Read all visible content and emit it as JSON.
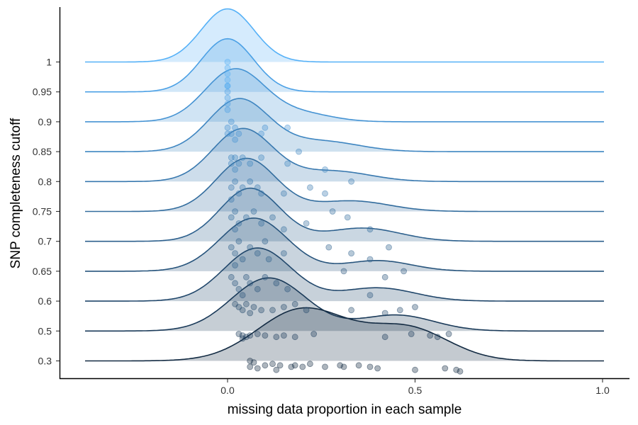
{
  "chart_data": {
    "type": "ridgeline",
    "xlabel": "missing data proportion in each sample",
    "ylabel": "SNP completeness cutoff",
    "xlim": [
      -0.38,
      1.08
    ],
    "x_ticks": [
      0.0,
      0.5,
      1.0
    ],
    "x_tick_labels": [
      "0.0",
      "0.5",
      "1.0"
    ],
    "categories": [
      "0.3",
      "0.5",
      "0.6",
      "0.65",
      "0.7",
      "0.75",
      "0.8",
      "0.85",
      "0.9",
      "0.95",
      "1"
    ],
    "grid": false,
    "legend": "none",
    "series": [
      {
        "cutoff": "0.3",
        "color": "#132B43",
        "density": {
          "modes": [
            {
              "mean": 0.2,
              "sd": 0.12,
              "w": 0.8
            },
            {
              "mean": 0.48,
              "sd": 0.11,
              "w": 0.5
            }
          ]
        },
        "points": [
          [
            0.07,
            0.29
          ],
          [
            0.06,
            0.26
          ],
          [
            0.08,
            0.25
          ],
          [
            0.1,
            0.27
          ],
          [
            0.12,
            0.28
          ],
          [
            0.13,
            0.24
          ],
          [
            0.14,
            0.27
          ],
          [
            0.17,
            0.26
          ],
          [
            0.18,
            0.27
          ],
          [
            0.2,
            0.26
          ],
          [
            0.22,
            0.28
          ],
          [
            0.26,
            0.26
          ],
          [
            0.3,
            0.27
          ],
          [
            0.31,
            0.26
          ],
          [
            0.35,
            0.27
          ],
          [
            0.38,
            0.26
          ],
          [
            0.4,
            0.25
          ],
          [
            0.5,
            0.24
          ],
          [
            0.58,
            0.25
          ],
          [
            0.61,
            0.24
          ],
          [
            0.62,
            0.23
          ],
          [
            0.06,
            0.3
          ]
        ]
      },
      {
        "cutoff": "0.5",
        "color": "#1A3A59",
        "density": {
          "modes": [
            {
              "mean": 0.11,
              "sd": 0.1,
              "w": 1.0
            },
            {
              "mean": 0.45,
              "sd": 0.1,
              "w": 0.3
            }
          ]
        },
        "points": [
          [
            0.03,
            0.48
          ],
          [
            0.04,
            0.47
          ],
          [
            0.05,
            0.46
          ],
          [
            0.06,
            0.47
          ],
          [
            0.08,
            0.48
          ],
          [
            0.1,
            0.47
          ],
          [
            0.13,
            0.46
          ],
          [
            0.15,
            0.47
          ],
          [
            0.18,
            0.46
          ],
          [
            0.23,
            0.48
          ],
          [
            0.42,
            0.46
          ],
          [
            0.49,
            0.48
          ],
          [
            0.54,
            0.47
          ],
          [
            0.56,
            0.46
          ],
          [
            0.59,
            0.48
          ],
          [
            0.04,
            0.45
          ]
        ]
      },
      {
        "cutoff": "0.6",
        "color": "#21476B",
        "density": {
          "modes": [
            {
              "mean": 0.08,
              "sd": 0.09,
              "w": 1.0
            },
            {
              "mean": 0.4,
              "sd": 0.1,
              "w": 0.25
            }
          ]
        },
        "points": [
          [
            0.02,
            0.59
          ],
          [
            0.03,
            0.58
          ],
          [
            0.04,
            0.57
          ],
          [
            0.05,
            0.59
          ],
          [
            0.07,
            0.58
          ],
          [
            0.09,
            0.57
          ],
          [
            0.12,
            0.57
          ],
          [
            0.15,
            0.58
          ],
          [
            0.18,
            0.59
          ],
          [
            0.21,
            0.57
          ],
          [
            0.33,
            0.57
          ],
          [
            0.42,
            0.56
          ],
          [
            0.46,
            0.57
          ],
          [
            0.5,
            0.58
          ],
          [
            0.06,
            0.56
          ]
        ]
      },
      {
        "cutoff": "0.65",
        "color": "#27547C",
        "density": {
          "modes": [
            {
              "mean": 0.07,
              "sd": 0.09,
              "w": 1.0
            },
            {
              "mean": 0.4,
              "sd": 0.09,
              "w": 0.2
            }
          ]
        },
        "points": [
          [
            0.01,
            0.64
          ],
          [
            0.02,
            0.63
          ],
          [
            0.03,
            0.62
          ],
          [
            0.05,
            0.64
          ],
          [
            0.06,
            0.63
          ],
          [
            0.08,
            0.62
          ],
          [
            0.1,
            0.64
          ],
          [
            0.13,
            0.63
          ],
          [
            0.16,
            0.62
          ],
          [
            0.31,
            0.65
          ],
          [
            0.38,
            0.61
          ],
          [
            0.42,
            0.64
          ],
          [
            0.47,
            0.65
          ],
          [
            0.04,
            0.61
          ]
        ]
      },
      {
        "cutoff": "0.7",
        "color": "#2D608D",
        "density": {
          "modes": [
            {
              "mean": 0.06,
              "sd": 0.08,
              "w": 1.0
            },
            {
              "mean": 0.36,
              "sd": 0.1,
              "w": 0.25
            }
          ]
        },
        "points": [
          [
            0.01,
            0.69
          ],
          [
            0.02,
            0.68
          ],
          [
            0.03,
            0.7
          ],
          [
            0.04,
            0.67
          ],
          [
            0.06,
            0.69
          ],
          [
            0.08,
            0.68
          ],
          [
            0.1,
            0.7
          ],
          [
            0.11,
            0.67
          ],
          [
            0.15,
            0.68
          ],
          [
            0.27,
            0.69
          ],
          [
            0.33,
            0.68
          ],
          [
            0.38,
            0.67
          ],
          [
            0.43,
            0.69
          ],
          [
            0.02,
            0.66
          ]
        ]
      },
      {
        "cutoff": "0.75",
        "color": "#336D9E",
        "density": {
          "modes": [
            {
              "mean": 0.05,
              "sd": 0.08,
              "w": 1.0
            },
            {
              "mean": 0.33,
              "sd": 0.1,
              "w": 0.2
            }
          ]
        },
        "points": [
          [
            0.01,
            0.74
          ],
          [
            0.02,
            0.75
          ],
          [
            0.03,
            0.73
          ],
          [
            0.05,
            0.74
          ],
          [
            0.07,
            0.75
          ],
          [
            0.09,
            0.73
          ],
          [
            0.12,
            0.74
          ],
          [
            0.15,
            0.72
          ],
          [
            0.21,
            0.73
          ],
          [
            0.28,
            0.75
          ],
          [
            0.32,
            0.74
          ],
          [
            0.38,
            0.72
          ],
          [
            0.02,
            0.72
          ]
        ]
      },
      {
        "cutoff": "0.8",
        "color": "#3979AF",
        "density": {
          "modes": [
            {
              "mean": 0.04,
              "sd": 0.08,
              "w": 1.0
            },
            {
              "mean": 0.28,
              "sd": 0.1,
              "w": 0.2
            }
          ]
        },
        "points": [
          [
            0.01,
            0.79
          ],
          [
            0.02,
            0.8
          ],
          [
            0.03,
            0.78
          ],
          [
            0.04,
            0.79
          ],
          [
            0.06,
            0.8
          ],
          [
            0.08,
            0.79
          ],
          [
            0.09,
            0.78
          ],
          [
            0.15,
            0.78
          ],
          [
            0.22,
            0.79
          ],
          [
            0.26,
            0.78
          ],
          [
            0.33,
            0.8
          ],
          [
            0.01,
            0.77
          ]
        ]
      },
      {
        "cutoff": "0.85",
        "color": "#3F86C1",
        "density": {
          "modes": [
            {
              "mean": 0.03,
              "sd": 0.08,
              "w": 1.0
            },
            {
              "mean": 0.25,
              "sd": 0.1,
              "w": 0.2
            }
          ]
        },
        "points": [
          [
            0.01,
            0.84
          ],
          [
            0.01,
            0.83
          ],
          [
            0.02,
            0.84
          ],
          [
            0.03,
            0.83
          ],
          [
            0.04,
            0.84
          ],
          [
            0.06,
            0.83
          ],
          [
            0.09,
            0.84
          ],
          [
            0.16,
            0.83
          ],
          [
            0.19,
            0.85
          ],
          [
            0.26,
            0.82
          ],
          [
            0.02,
            0.82
          ]
        ]
      },
      {
        "cutoff": "0.9",
        "color": "#4593D3",
        "density": {
          "modes": [
            {
              "mean": 0.02,
              "sd": 0.08,
              "w": 1.0
            },
            {
              "mean": 0.2,
              "sd": 0.08,
              "w": 0.15
            }
          ]
        },
        "points": [
          [
            0.0,
            0.89
          ],
          [
            0.01,
            0.9
          ],
          [
            0.0,
            0.88
          ],
          [
            0.01,
            0.88
          ],
          [
            0.02,
            0.89
          ],
          [
            0.03,
            0.88
          ],
          [
            0.09,
            0.88
          ],
          [
            0.1,
            0.89
          ],
          [
            0.16,
            0.89
          ],
          [
            0.02,
            0.87
          ]
        ]
      },
      {
        "cutoff": "0.95",
        "color": "#4BA0E5",
        "density": {
          "modes": [
            {
              "mean": 0.0,
              "sd": 0.07,
              "w": 1.0
            }
          ]
        },
        "points": [
          [
            0.0,
            0.93
          ],
          [
            0.0,
            0.94
          ],
          [
            0.0,
            0.95
          ],
          [
            0.0,
            0.96
          ],
          [
            0.0,
            0.92
          ]
        ]
      },
      {
        "cutoff": "1",
        "color": "#56B1F7",
        "density": {
          "modes": [
            {
              "mean": 0.0,
              "sd": 0.07,
              "w": 1.0
            }
          ]
        },
        "points": [
          [
            0.0,
            0.97
          ],
          [
            0.0,
            0.98
          ],
          [
            0.0,
            0.99
          ],
          [
            0.0,
            1.0
          ],
          [
            0.0,
            0.96
          ]
        ]
      }
    ]
  }
}
